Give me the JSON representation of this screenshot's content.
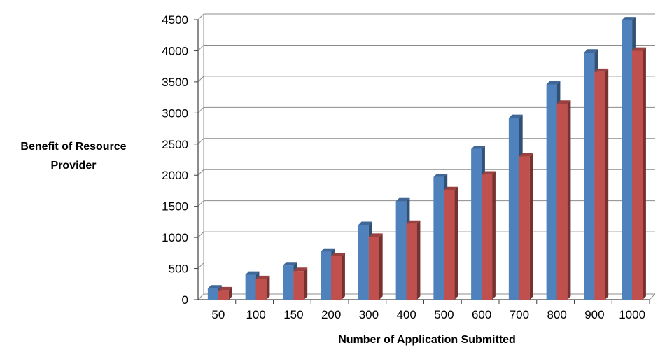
{
  "chart_data": {
    "type": "bar",
    "title": "",
    "xlabel": "Number of Application Submitted",
    "ylabel_lines": [
      "Benefit of Resource",
      "Provider"
    ],
    "ylim": [
      0,
      4500
    ],
    "yticks": [
      "0",
      "500",
      "1000",
      "1500",
      "2000",
      "2500",
      "3000",
      "3500",
      "4000",
      "4500"
    ],
    "categories": [
      "50",
      "100",
      "150",
      "200",
      "300",
      "400",
      "500",
      "600",
      "700",
      "800",
      "900",
      "1000"
    ],
    "series": [
      {
        "color": "#4f81bd",
        "values": [
          180,
          400,
          550,
          770,
          1200,
          1580,
          1970,
          2420,
          2920,
          3460,
          3970,
          4490
        ]
      },
      {
        "color": "#c0504d",
        "values": [
          150,
          330,
          460,
          700,
          1010,
          1220,
          1760,
          2010,
          2300,
          3150,
          3660,
          4000
        ]
      }
    ],
    "grid": true,
    "legend": "none"
  }
}
